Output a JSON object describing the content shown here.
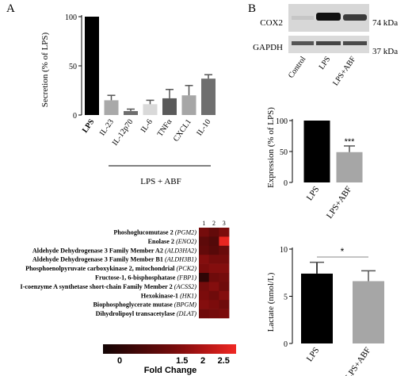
{
  "panel_labels": {
    "a": "A",
    "b": "B"
  },
  "chart_data": [
    {
      "id": "panel-a-secretion",
      "type": "bar",
      "categories": [
        "LPS",
        "IL-23",
        "IL-12p70",
        "IL-6",
        "TNFα",
        "CXCL1",
        "IL-10"
      ],
      "values": [
        100,
        15,
        4,
        11,
        17,
        20,
        37
      ],
      "errors": [
        0,
        5,
        2,
        4,
        9,
        10,
        4
      ],
      "colors": [
        "#000000",
        "#a9a9a9",
        "#6e6e6e",
        "#d9d9d9",
        "#5a5a5a",
        "#a6a6a6",
        "#6f6f6f"
      ],
      "ylabel": "Secretion (% of LPS)",
      "yticks": [
        0,
        50,
        100
      ],
      "ylim": [
        0,
        100
      ],
      "group_label": "LPS + ABF"
    },
    {
      "id": "panel-b-cox2-expression",
      "type": "bar",
      "categories": [
        "LPS",
        "LPS+ABF"
      ],
      "values": [
        100,
        49
      ],
      "errors": [
        0,
        10
      ],
      "colors": [
        "#000000",
        "#a6a6a6"
      ],
      "ylabel": "Expression (% of LPS)",
      "yticks": [
        0,
        50,
        100
      ],
      "ylim": [
        0,
        100
      ],
      "annotation": "***"
    },
    {
      "id": "panel-b-lactate",
      "type": "bar",
      "categories": [
        "LPS",
        "LPS+ABF"
      ],
      "values": [
        7.4,
        6.6
      ],
      "errors": [
        1.2,
        1.1
      ],
      "colors": [
        "#000000",
        "#a6a6a6"
      ],
      "ylabel": "Lactate (nmol/L)",
      "yticks": [
        0,
        5,
        10
      ],
      "ylim": [
        0,
        10
      ],
      "annotation": "*"
    },
    {
      "id": "heatmap-fold-change",
      "type": "heatmap",
      "columns": [
        "1",
        "2",
        "3"
      ],
      "rows": [
        {
          "name": "Phoshoglucomutase 2",
          "gene": "(PGM2)"
        },
        {
          "name": "Enolase 2",
          "gene": "(ENO2)"
        },
        {
          "name": "Aldehyde Dehydrogenase 3 Family Member A2",
          "gene": "(ALD3HA2)"
        },
        {
          "name": "Aldehyde Dehydrogenase 3 Family Member B1",
          "gene": "(ALDH3B1)"
        },
        {
          "name": "Phosphoenolpyruvate carboxykinase 2, mitochondrial",
          "gene": "(PCK2)"
        },
        {
          "name": "Fructose-1, 6-bisphosphatase",
          "gene": "(FBP1)"
        },
        {
          "name": "I-coenzyme A synthetase short-chain Family Member 2",
          "gene": "(ACSS2)"
        },
        {
          "name": "Hexokinase-1",
          "gene": "(HK1)"
        },
        {
          "name": "Biophosphoglycerate mutase",
          "gene": "(BPGM)"
        },
        {
          "name": "Dihydrolipoyl transacetylase",
          "gene": "(DLAT)"
        }
      ],
      "values": [
        [
          1.3,
          1.0,
          1.4
        ],
        [
          0.9,
          0.7,
          2.7
        ],
        [
          1.0,
          0.8,
          1.1
        ],
        [
          1.5,
          1.3,
          1.3
        ],
        [
          1.4,
          1.5,
          1.5
        ],
        [
          0.1,
          1.2,
          1.3
        ],
        [
          1.3,
          1.5,
          1.2
        ],
        [
          1.4,
          1.2,
          1.5
        ],
        [
          1.5,
          1.4,
          1.2
        ],
        [
          1.2,
          1.3,
          1.4
        ]
      ],
      "colorbar_ticks": [
        0,
        1.5,
        2,
        2.5
      ],
      "colorbar_range": [
        -0.4,
        2.8
      ],
      "colorbar_label": "Fold Change"
    }
  ],
  "western_blot": {
    "bands": [
      "COX2",
      "GAPDH"
    ],
    "sizes": [
      "74 kDa",
      "37 kDa"
    ],
    "lanes": [
      "Control",
      "LPS",
      "LPS+ABF"
    ]
  }
}
